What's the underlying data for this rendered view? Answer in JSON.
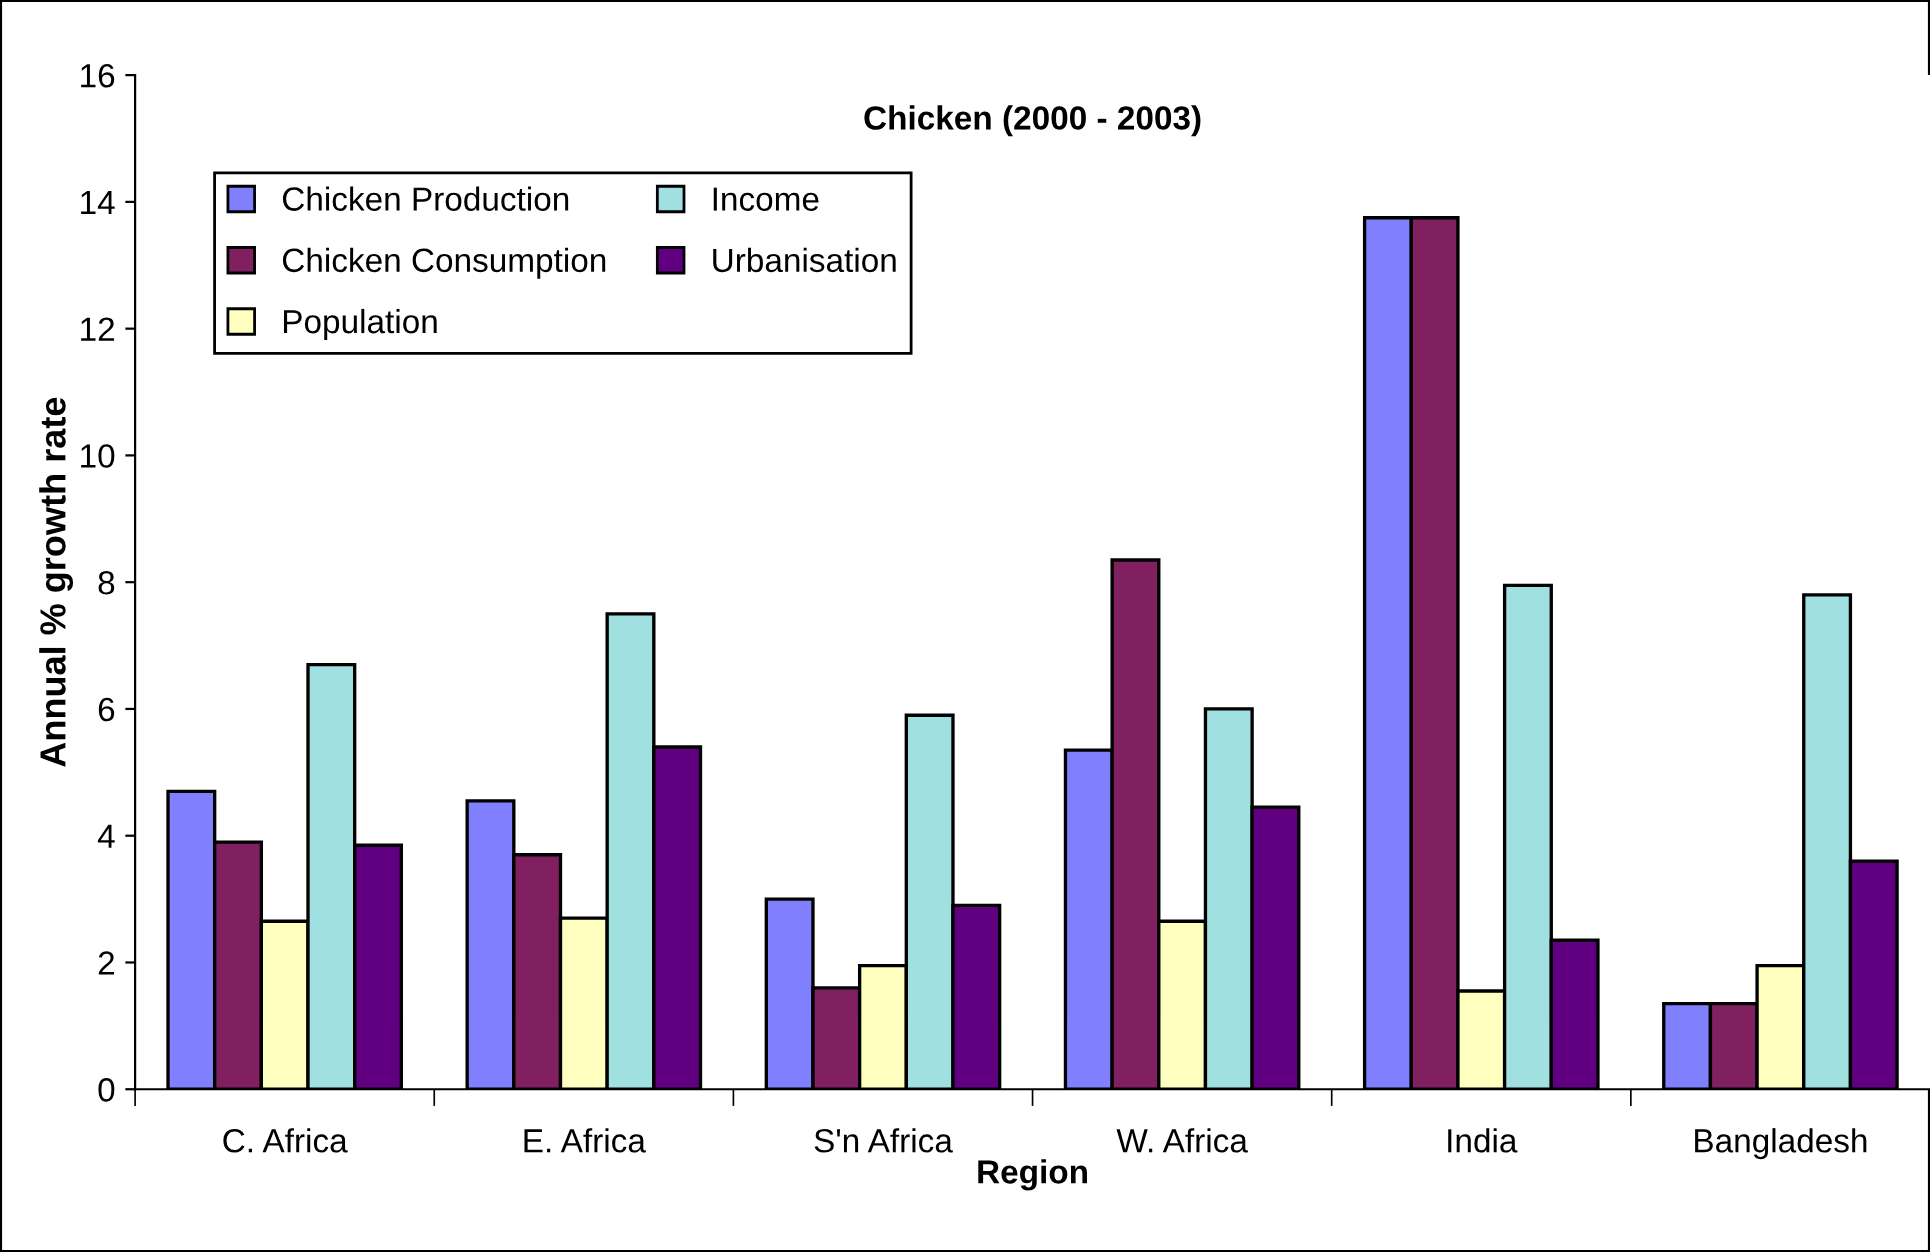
{
  "chart_data": {
    "type": "bar",
    "title": "Chicken (2000 - 2003)",
    "xlabel": "Region",
    "ylabel": "Annual % growth rate",
    "categories": [
      "C. Africa",
      "E. Africa",
      "S'n Africa",
      "W. Africa",
      "India",
      "Bangladesh"
    ],
    "series": [
      {
        "name": "Chicken Production",
        "color": "#8080ff",
        "values": [
          4.7,
          4.55,
          3.0,
          5.35,
          13.75,
          1.35
        ]
      },
      {
        "name": "Chicken Consumption",
        "color": "#802060",
        "values": [
          3.9,
          3.7,
          1.6,
          8.35,
          13.75,
          1.35
        ]
      },
      {
        "name": "Population",
        "color": "#ffffc0",
        "values": [
          2.65,
          2.7,
          1.95,
          2.65,
          1.55,
          1.95
        ]
      },
      {
        "name": "Income",
        "color": "#a0e0e0",
        "values": [
          6.7,
          7.5,
          5.9,
          6.0,
          7.95,
          7.8
        ]
      },
      {
        "name": "Urbanisation",
        "color": "#600080",
        "values": [
          3.85,
          5.4,
          2.9,
          4.45,
          2.35,
          3.6
        ]
      }
    ],
    "ylim": [
      0,
      16
    ],
    "yticks": [
      0,
      2,
      4,
      6,
      8,
      10,
      12,
      14,
      16
    ],
    "grid": false,
    "legend": "top left"
  }
}
